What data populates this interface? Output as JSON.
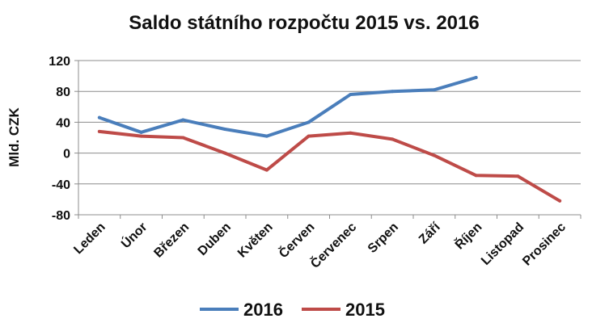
{
  "chart_data": {
    "type": "line",
    "title": "Saldo státního rozpočtu 2015 vs. 2016",
    "xlabel": "",
    "ylabel": "Mld. CZK",
    "ylim": [
      -80,
      120
    ],
    "yticks": [
      "120",
      "80",
      "40",
      "0",
      "-40",
      "-80"
    ],
    "categories": [
      "Leden",
      "Únor",
      "Březen",
      "Duben",
      "Květen",
      "Červen",
      "Červenec",
      "Srpen",
      "Září",
      "Říjen",
      "Listopad",
      "Prosinec"
    ],
    "grid": true,
    "legend_position": "bottom",
    "series": [
      {
        "name": "2016",
        "color": "#4a7ebb",
        "values": [
          46,
          27,
          43,
          31,
          22,
          40,
          76,
          80,
          82,
          98,
          null,
          null
        ]
      },
      {
        "name": "2015",
        "color": "#be4b48",
        "values": [
          28,
          22,
          20,
          0,
          -22,
          22,
          26,
          18,
          -3,
          -29,
          -30,
          -62
        ]
      }
    ]
  }
}
